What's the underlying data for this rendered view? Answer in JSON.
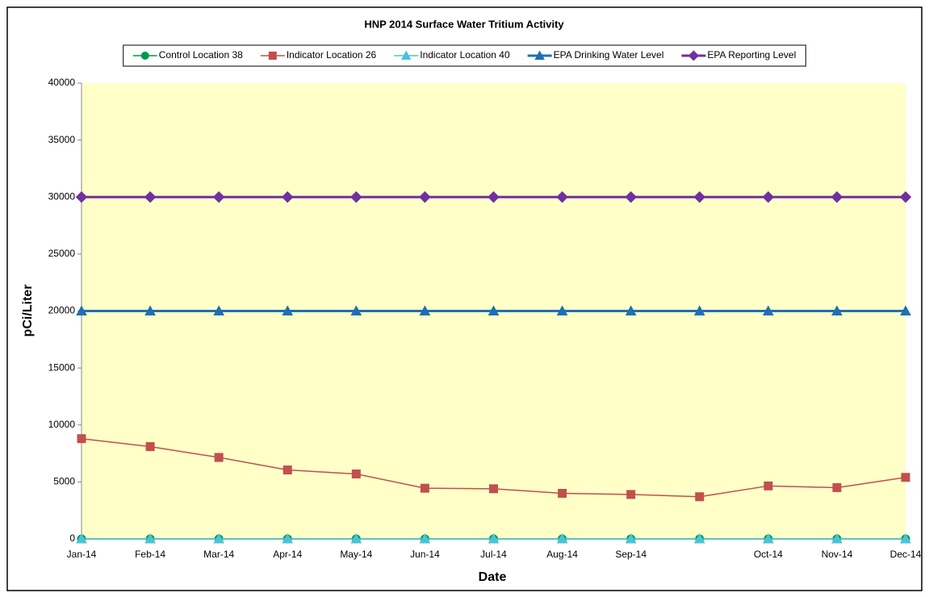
{
  "chart_data": {
    "type": "line",
    "title": "HNP 2014 Surface Water Tritium Activity",
    "x_label": "Date",
    "y_label": "pCi/Liter",
    "categories": [
      "Jan-14",
      "Feb-14",
      "Mar-14",
      "Apr-14",
      "May-14",
      "Jun-14",
      "Jul-14",
      "Aug-14",
      "Sep-14",
      null,
      "Oct-14",
      "Nov-14",
      "Dec-14"
    ],
    "series": [
      {
        "name": "Control Location 38",
        "color": "#00994c",
        "marker": "circle",
        "width": 1.5,
        "values": [
          0,
          0,
          0,
          0,
          0,
          0,
          0,
          0,
          0,
          0,
          0,
          0,
          0
        ]
      },
      {
        "name": "Indicator Location 26",
        "color": "#c0504d",
        "marker": "square",
        "width": 1.5,
        "values": [
          8800,
          8100,
          7150,
          6050,
          5700,
          4450,
          4400,
          4000,
          3900,
          3700,
          4650,
          4500,
          5400
        ]
      },
      {
        "name": "Indicator Location 40",
        "color": "#4bc3d6",
        "marker": "triangle",
        "width": 1.5,
        "values": [
          0,
          0,
          0,
          0,
          0,
          0,
          0,
          0,
          0,
          0,
          0,
          0,
          0
        ]
      },
      {
        "name": "EPA Drinking Water Level",
        "color": "#1f6fb5",
        "marker": "triangle",
        "width": 3,
        "values": [
          20000,
          20000,
          20000,
          20000,
          20000,
          20000,
          20000,
          20000,
          20000,
          20000,
          20000,
          20000,
          20000
        ]
      },
      {
        "name": "EPA Reporting Level",
        "color": "#7030a0",
        "marker": "diamond",
        "width": 3,
        "values": [
          30000,
          30000,
          30000,
          30000,
          30000,
          30000,
          30000,
          30000,
          30000,
          30000,
          30000,
          30000,
          30000
        ]
      }
    ],
    "ylim": [
      0,
      40000
    ],
    "yticks": [
      0,
      5000,
      10000,
      15000,
      20000,
      25000,
      30000,
      35000,
      40000
    ],
    "plot_background": "#ffffc8",
    "grid": false,
    "legend": "top"
  }
}
